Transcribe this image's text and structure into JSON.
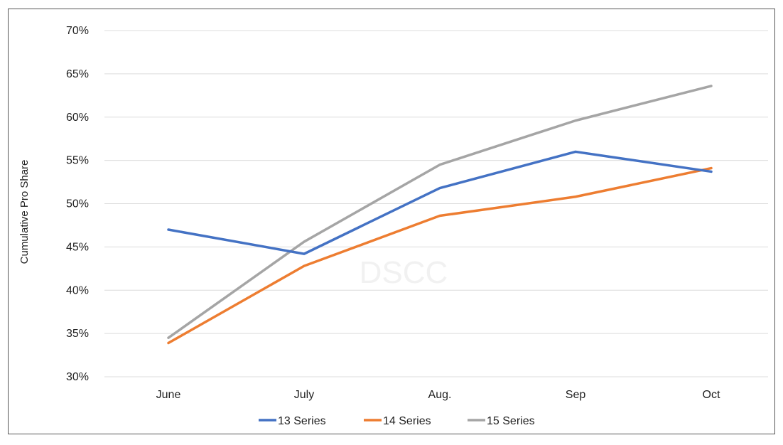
{
  "chart_data": {
    "type": "line",
    "title": "",
    "xlabel": "",
    "ylabel": "Cumulative Pro Share",
    "watermark": "DSCC",
    "categories": [
      "June",
      "July",
      "Aug.",
      "Sep",
      "Oct"
    ],
    "ylim": [
      30,
      70
    ],
    "yticks": [
      30,
      35,
      40,
      45,
      50,
      55,
      60,
      65,
      70
    ],
    "ytick_labels": [
      "30%",
      "35%",
      "40%",
      "45%",
      "50%",
      "55%",
      "60%",
      "65%",
      "70%"
    ],
    "grid": "horizontal",
    "legend_position": "bottom",
    "series": [
      {
        "name": "13 Series",
        "color": "#4472C4",
        "values": [
          47.0,
          44.2,
          51.8,
          56.0,
          53.7
        ]
      },
      {
        "name": "14 Series",
        "color": "#ED7D31",
        "values": [
          33.9,
          42.8,
          48.6,
          50.8,
          54.1
        ]
      },
      {
        "name": "15 Series",
        "color": "#A5A5A5",
        "values": [
          34.5,
          45.6,
          54.5,
          59.6,
          63.6
        ]
      }
    ]
  }
}
